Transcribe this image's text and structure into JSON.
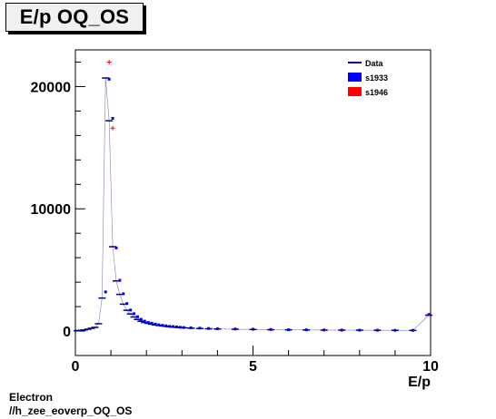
{
  "title": "E/p OQ_OS",
  "footer": {
    "line1": "Electron",
    "line2": "//h_zee_eoverp_OQ_OS"
  },
  "chart_data": {
    "type": "scatter",
    "title": "E/p OQ_OS",
    "xlabel": "E/p",
    "ylabel": "",
    "xlim": [
      0,
      10
    ],
    "ylim": [
      -2000,
      23000
    ],
    "x_ticks": [
      "0",
      "5",
      "10"
    ],
    "y_ticks": [
      "0",
      "10000",
      "20000"
    ],
    "legend_position": "top-right",
    "series": [
      {
        "name": "Data",
        "color": "#000080",
        "x": [
          0.05,
          0.15,
          0.25,
          0.35,
          0.45,
          0.55,
          0.65,
          0.75,
          0.85,
          0.95,
          1.05,
          1.15,
          1.25,
          1.35,
          1.45,
          1.55,
          1.65,
          1.75,
          1.85,
          1.95,
          2.05,
          2.15,
          2.25,
          2.35,
          2.45,
          2.55,
          2.65,
          2.75,
          2.85,
          2.95,
          3.05,
          3.25,
          3.5,
          3.75,
          4.0,
          4.5,
          5.0,
          5.5,
          6.0,
          6.5,
          7.0,
          7.5,
          8.0,
          8.5,
          9.0,
          9.5,
          9.95
        ],
        "y": [
          30,
          60,
          90,
          150,
          230,
          300,
          600,
          2700,
          20700,
          17200,
          6900,
          4100,
          3000,
          2200,
          1700,
          1400,
          1150,
          950,
          800,
          700,
          630,
          560,
          500,
          460,
          420,
          390,
          360,
          330,
          310,
          290,
          270,
          240,
          210,
          190,
          170,
          150,
          130,
          110,
          100,
          90,
          80,
          75,
          70,
          65,
          60,
          55,
          1300
        ]
      },
      {
        "name": "s1933",
        "color": "#0000ff",
        "x": [
          0.85,
          0.95,
          1.05,
          1.15,
          1.25,
          1.35,
          1.45,
          1.55,
          1.65,
          1.75,
          1.85,
          1.95,
          2.05,
          2.15,
          2.25,
          2.35,
          2.45,
          2.55,
          2.65,
          2.75,
          2.85,
          2.95,
          3.05,
          3.25,
          3.5,
          3.75,
          4.0,
          4.5,
          5.0,
          5.5,
          6.0,
          6.5,
          7.0,
          7.5,
          8.0,
          8.5,
          9.0,
          9.5,
          9.95
        ],
        "y": [
          3200,
          20600,
          17400,
          6800,
          4150,
          3050,
          2250,
          1720,
          1420,
          1170,
          960,
          810,
          710,
          640,
          570,
          510,
          470,
          430,
          390,
          370,
          340,
          310,
          290,
          270,
          240,
          210,
          190,
          170,
          150,
          130,
          110,
          100,
          90,
          80,
          75,
          70,
          65,
          60,
          1350
        ]
      },
      {
        "name": "s1946",
        "color": "#ff0000",
        "x": [
          0.95,
          1.05
        ],
        "y": [
          22000,
          16600
        ]
      }
    ]
  }
}
